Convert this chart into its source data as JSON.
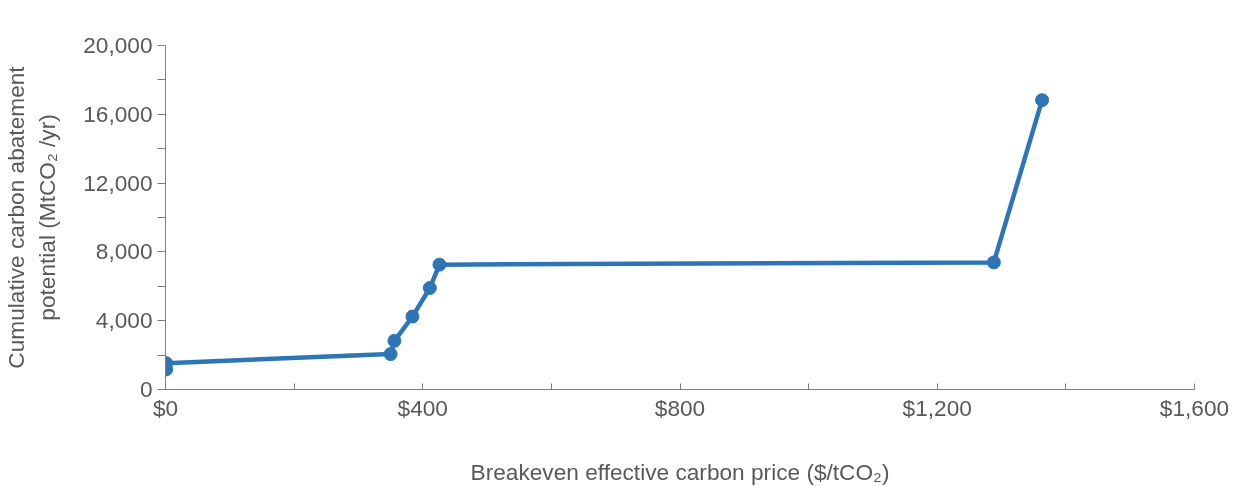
{
  "chart_data": {
    "type": "line",
    "xlabel": "Breakeven effective carbon price ($/tCO₂)",
    "ylabel": "Cumulative carbon abatement potential (MtCO₂ /yr)",
    "series": [
      {
        "color": "#2e75b6",
        "x": [
          1,
          1,
          350,
          356,
          384,
          411,
          426,
          1288,
          1363
        ],
        "values": [
          1170,
          1530,
          2060,
          2830,
          4240,
          5900,
          7260,
          7390,
          16820
        ]
      }
    ],
    "xlim": [
      0,
      1600
    ],
    "ylim": [
      0,
      20000
    ],
    "xticks": [
      {
        "value": 0,
        "label": "$0"
      },
      {
        "value": 200,
        "label": null
      },
      {
        "value": 400,
        "label": "$400"
      },
      {
        "value": 600,
        "label": null
      },
      {
        "value": 800,
        "label": "$800"
      },
      {
        "value": 1000,
        "label": null
      },
      {
        "value": 1200,
        "label": "$1,200"
      },
      {
        "value": 1400,
        "label": null
      },
      {
        "value": 1600,
        "label": "$1,600"
      }
    ],
    "yticks": [
      0,
      {
        "value": 2000,
        "label": null
      },
      {
        "value": 4000,
        "label": "4,000"
      },
      {
        "value": 6000,
        "label": null
      },
      {
        "value": 8000,
        "label": "8,000"
      },
      {
        "value": 10000,
        "label": null
      },
      {
        "value": 12000,
        "label": "12,000"
      },
      {
        "value": 14000,
        "label": null
      },
      {
        "value": 16000,
        "label": "16,000"
      },
      {
        "value": 18000,
        "label": null
      },
      {
        "value": 20000,
        "label": "20,000"
      }
    ],
    "grid": false,
    "marker": "circle",
    "line_style": "solid"
  }
}
